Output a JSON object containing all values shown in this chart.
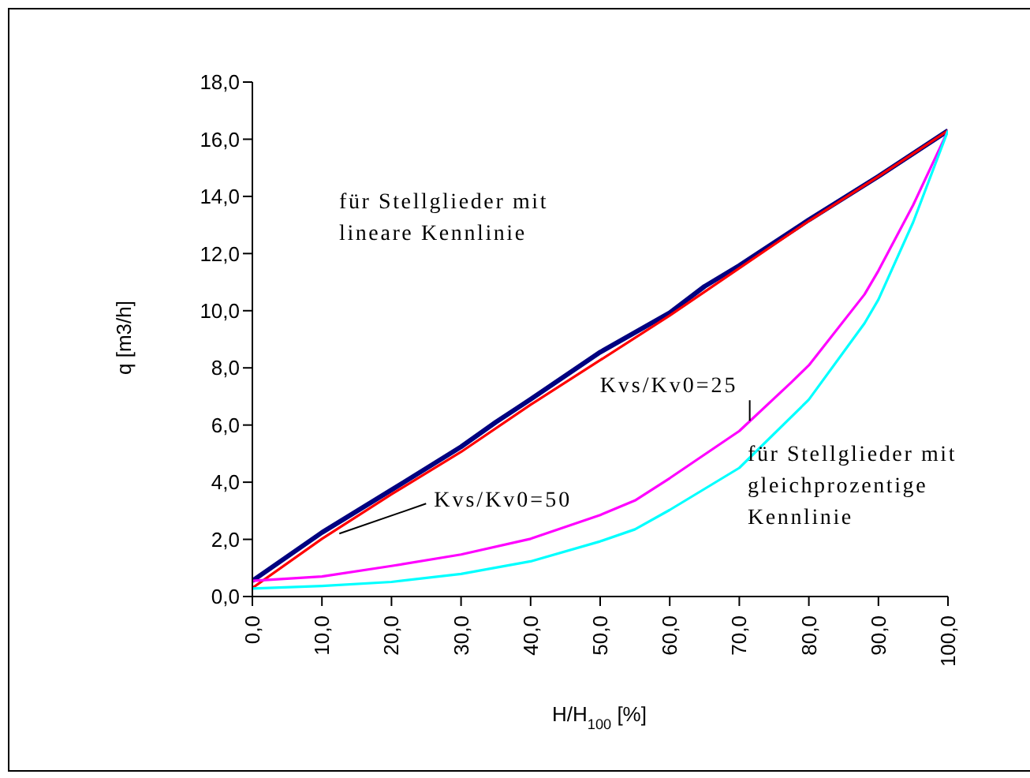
{
  "chart_data": {
    "type": "line",
    "xlabel": "H/H$_{100}$ [%]",
    "ylabel": "q [m3/h]",
    "xlim": [
      0,
      100
    ],
    "xticks": [
      {
        "value": 0,
        "label": "0,0"
      },
      {
        "value": 10,
        "label": "10,0"
      },
      {
        "value": 20,
        "label": "20,0"
      },
      {
        "value": 30,
        "label": "30,0"
      },
      {
        "value": 40,
        "label": "40,0"
      },
      {
        "value": 50,
        "label": "50,0"
      },
      {
        "value": 60,
        "label": "60,0"
      },
      {
        "value": 70,
        "label": "70,0"
      },
      {
        "value": 80,
        "label": "80,0"
      },
      {
        "value": 90,
        "label": "90,0"
      },
      {
        "value": 100,
        "label": "100,0"
      }
    ],
    "ylim": [
      0,
      18
    ],
    "yticks": [
      {
        "value": 0,
        "label": "0,0"
      },
      {
        "value": 2,
        "label": "2,0"
      },
      {
        "value": 4,
        "label": "4,0"
      },
      {
        "value": 6,
        "label": "6,0"
      },
      {
        "value": 8,
        "label": "8,0"
      },
      {
        "value": 10,
        "label": "10,0"
      },
      {
        "value": 12,
        "label": "12,0"
      },
      {
        "value": 14,
        "label": "14,0"
      },
      {
        "value": 16,
        "label": "16,0"
      },
      {
        "value": 18,
        "label": "18,0"
      }
    ],
    "grid": false,
    "legend": false,
    "marker": "none",
    "line_style": "solid",
    "series": [
      {
        "color": "#000080",
        "x": [
          0,
          10,
          20,
          30,
          35,
          40,
          50,
          60,
          65,
          70,
          80,
          90,
          100
        ],
        "values": [
          0.55,
          2.24,
          3.73,
          5.24,
          6.1,
          6.9,
          8.55,
          9.93,
          10.85,
          11.58,
          13.18,
          14.7,
          16.3
        ]
      },
      {
        "color": "#ff0000",
        "x": [
          0,
          10,
          20,
          30,
          40,
          50,
          60,
          70,
          80,
          90,
          100
        ],
        "values": [
          0.3,
          2.02,
          3.58,
          5.06,
          6.71,
          8.27,
          9.83,
          11.49,
          13.14,
          14.7,
          16.3
        ]
      },
      {
        "color": "#ff00ff",
        "x": [
          0,
          10,
          20,
          30,
          40,
          50,
          55,
          60,
          70,
          77.5,
          80,
          88,
          90,
          95,
          100
        ],
        "values": [
          0.55,
          0.7,
          1.07,
          1.47,
          2.02,
          2.85,
          3.36,
          4.14,
          5.79,
          7.5,
          8.09,
          10.57,
          11.4,
          13.7,
          16.3
        ]
      },
      {
        "color": "#00ffff",
        "x": [
          0,
          10,
          20,
          30,
          40,
          50,
          55,
          60,
          70,
          80,
          88,
          90,
          95,
          100
        ],
        "values": [
          0.28,
          0.37,
          0.51,
          0.79,
          1.23,
          1.93,
          2.35,
          3.03,
          4.5,
          6.89,
          9.56,
          10.39,
          13.1,
          16.3
        ]
      }
    ],
    "annotations": [
      "für Stellglieder mit\nlineare Kennlinie",
      "für Stellglieder mit\ngleichprozentige\nKennlinie",
      {
        "text": "Kvs/Kv0=25",
        "x": 71.5,
        "y": 6.15
      },
      {
        "text": "Kvs/Kv0=50",
        "x": 12.5,
        "y": 2.2
      }
    ]
  }
}
